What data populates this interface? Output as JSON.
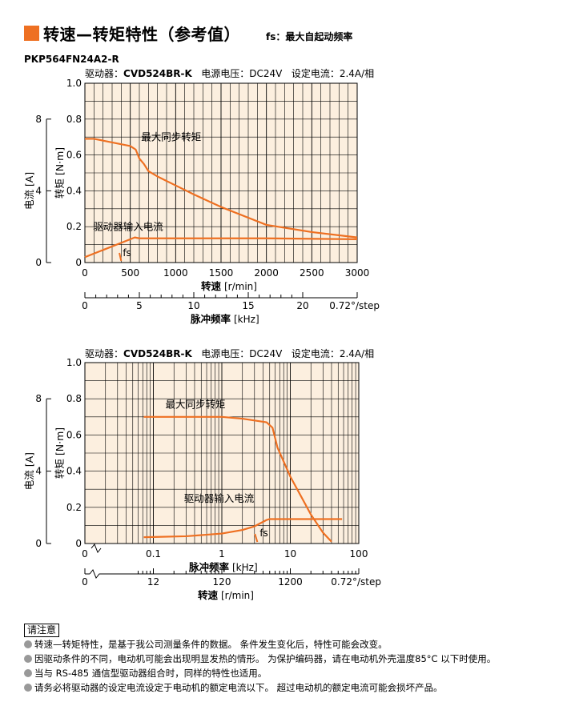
{
  "title": "转速—转矩特性（参考值）",
  "title_note": "fs：最大自起动频率",
  "model": "PKP564FN24A2-R",
  "colors": {
    "accent": "#ee7022",
    "plot_bg": "#fcefdf",
    "curve": "#ee7022"
  },
  "chart_data": [
    {
      "type": "line",
      "header": {
        "driver_label": "驱动器：",
        "driver": "CVD524BR-K",
        "voltage": "电源电压：DC24V",
        "current": "设定电流：2.4A/相"
      },
      "x_axis": {
        "label": "转速",
        "unit": "[r/min]",
        "scale": "linear",
        "range": [
          0,
          3000
        ],
        "ticks": [
          "0",
          "500",
          "1000",
          "1500",
          "2000",
          "2500",
          "3000"
        ]
      },
      "x2_axis": {
        "label": "脉冲频率",
        "unit": "[kHz]",
        "range": [
          0,
          25
        ],
        "ticks": [
          "0",
          "5",
          "10",
          "15",
          "20"
        ],
        "step_note": "0.72°/step"
      },
      "y_axis": {
        "label": "转矩",
        "unit": "[N·m]",
        "range": [
          0,
          1.0
        ],
        "ticks": [
          "0",
          "0.2",
          "0.4",
          "0.6",
          "0.8",
          "1.0"
        ]
      },
      "y2_axis": {
        "label": "电流",
        "unit": "[A]",
        "range": [
          0,
          10
        ],
        "ticks": [
          "0",
          "4",
          "8"
        ]
      },
      "series": [
        {
          "name": "最大同步转矩",
          "axis": "torque",
          "x": [
            0,
            50,
            100,
            200,
            300,
            400,
            500,
            560,
            600,
            650,
            700,
            800,
            1000,
            1200,
            1500,
            1800,
            2000,
            2500,
            3000
          ],
          "y": [
            0.69,
            0.69,
            0.69,
            0.68,
            0.67,
            0.66,
            0.65,
            0.63,
            0.58,
            0.55,
            0.51,
            0.48,
            0.43,
            0.38,
            0.31,
            0.25,
            0.21,
            0.17,
            0.14
          ]
        },
        {
          "name": "驱动器输入电流",
          "axis": "current",
          "x": [
            0,
            200,
            400,
            550,
            600,
            1000,
            2000,
            3000
          ],
          "y": [
            0.3,
            0.7,
            1.1,
            1.4,
            1.35,
            1.35,
            1.35,
            1.3
          ]
        }
      ],
      "fs": {
        "label": "fs",
        "x": 400
      }
    },
    {
      "type": "line",
      "header": {
        "driver_label": "驱动器：",
        "driver": "CVD524BR-K",
        "voltage": "电源电压：DC24V",
        "current": "设定电流：2.4A/相"
      },
      "x_axis": {
        "label": "脉冲频率",
        "unit": "[kHz]",
        "scale": "log",
        "range": [
          0.01,
          100
        ],
        "ticks": [
          "0.1",
          "1",
          "10",
          "100"
        ],
        "zero_label": "0"
      },
      "x2_axis": {
        "label": "转速",
        "unit": "[r/min]",
        "ticks": [
          "0",
          "12",
          "120",
          "1200"
        ],
        "step_note": "0.72°/step"
      },
      "y_axis": {
        "label": "转矩",
        "unit": "[N·m]",
        "range": [
          0,
          1.0
        ],
        "ticks": [
          "0",
          "0.2",
          "0.4",
          "0.6",
          "0.8",
          "1.0"
        ]
      },
      "y2_axis": {
        "label": "电流",
        "unit": "[A]",
        "range": [
          0,
          10
        ],
        "ticks": [
          "0",
          "4",
          "8"
        ]
      },
      "series": [
        {
          "name": "最大同步转矩",
          "axis": "torque",
          "x": [
            0.0725,
            0.15,
            0.3,
            0.6,
            1,
            2,
            3,
            4.5,
            5.5,
            6.5,
            10,
            20,
            30,
            40
          ],
          "y": [
            0.7,
            0.7,
            0.7,
            0.7,
            0.7,
            0.69,
            0.68,
            0.67,
            0.64,
            0.53,
            0.37,
            0.16,
            0.06,
            0.01
          ]
        },
        {
          "name": "驱动器输入电流",
          "axis": "current",
          "x": [
            0.0725,
            0.3,
            1,
            2,
            3,
            4.5,
            5,
            10,
            30,
            57
          ],
          "y": [
            0.35,
            0.4,
            0.55,
            0.75,
            0.95,
            1.3,
            1.35,
            1.35,
            1.35,
            1.35
          ]
        }
      ],
      "fs": {
        "label": "fs",
        "x": 3.3
      }
    }
  ],
  "notes": {
    "title": "请注意",
    "items": [
      "转速—转矩特性，是基于我公司测量条件的数据。 条件发生变化后，特性可能会改变。",
      "因驱动条件的不同，电动机可能会出现明显发热的情形。 为保护编码器，请在电动机外壳温度85°C 以下时使用。",
      "当与 RS-485 通信型驱动器组合时，同样的特性也适用。",
      "请务必将驱动器的设定电流设定于电动机的额定电流以下。 超过电动机的额定电流可能会损坏产品。"
    ]
  }
}
